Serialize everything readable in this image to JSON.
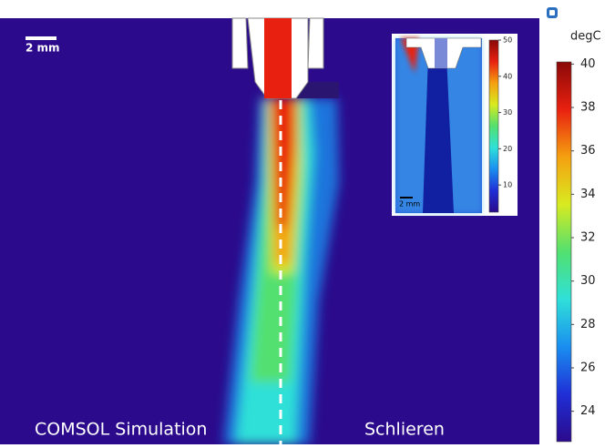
{
  "figure": {
    "left_label": "COMSOL Simulation",
    "right_label": "Schlieren",
    "scale_bar": "2 mm",
    "colorbar": {
      "unit": "degC",
      "lim": [
        22.6,
        40.1
      ],
      "ticks": [
        24,
        26,
        28,
        30,
        32,
        34,
        36,
        38,
        40
      ]
    },
    "inset": {
      "scale_bar": "2 mm",
      "colorbar": {
        "lim": [
          2.5,
          50
        ],
        "ticks": [
          10,
          20,
          30,
          40,
          50
        ]
      }
    },
    "colormap": [
      "#2b0a8c",
      "#1f2fd6",
      "#1a8ef0",
      "#2fe0d8",
      "#52e070",
      "#d8ea20",
      "#f5a010",
      "#e82010",
      "#8a0808"
    ]
  }
}
